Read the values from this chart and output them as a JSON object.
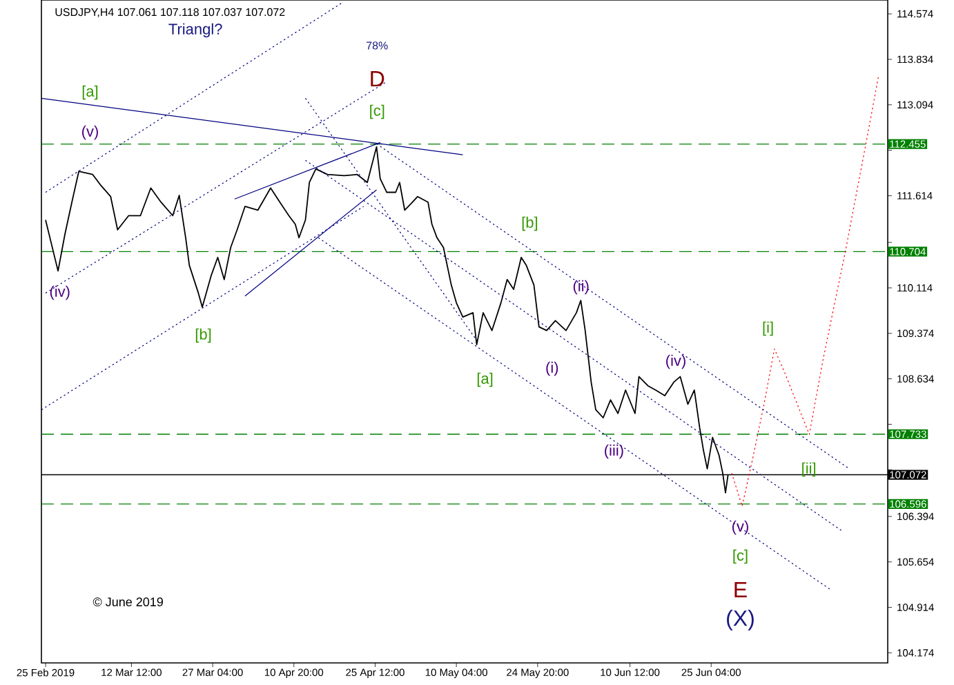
{
  "chart_data": {
    "type": "line",
    "title": "USDJPY,H4 107.061 107.118 107.037 107.072",
    "xlim": [
      "2019-02-24T06:00",
      "2019-07-27T01:00"
    ],
    "ylim": [
      104.01,
      114.8
    ],
    "xticks": [
      {
        "value": "2019-02-25T00:00",
        "label": "25 Feb 2019"
      },
      {
        "value": "2019-03-12T12:00",
        "label": "12 Mar 12:00"
      },
      {
        "value": "2019-03-27T04:00",
        "label": "27 Mar 04:00"
      },
      {
        "value": "2019-04-10T20:00",
        "label": "10 Apr 20:00"
      },
      {
        "value": "2019-04-25T12:00",
        "label": "25 Apr 12:00"
      },
      {
        "value": "2019-05-10T04:00",
        "label": "10 May 04:00"
      },
      {
        "value": "2019-05-24T20:00",
        "label": "24 May 20:00"
      },
      {
        "value": "2019-06-10T12:00",
        "label": "10 Jun 12:00"
      },
      {
        "value": "2019-06-25T04:00",
        "label": "25 Jun 04:00"
      }
    ],
    "yticks": [
      114.574,
      113.834,
      113.094,
      {
        "value": 112.354,
        "label": null
      },
      111.614,
      {
        "value": 110.854,
        "label": null
      },
      110.114,
      109.374,
      108.634,
      {
        "value": 107.894,
        "label": null
      },
      {
        "value": 107.154,
        "label": null
      },
      106.394,
      105.654,
      104.914,
      104.174
    ],
    "series": [
      {
        "color": "#000000",
        "line_style": "solid",
        "x": [
          "2019-02-25T00:00",
          "2019-02-27T06:00",
          "2019-02-28T12:00",
          "2019-03-01T18:00",
          "2019-03-03T00:00",
          "2019-03-05T12:00",
          "2019-03-07T00:00",
          "2019-03-08T18:00",
          "2019-03-10T00:00",
          "2019-03-12T00:00",
          "2019-03-14T03:00",
          "2019-03-16T00:00",
          "2019-03-17T20:00",
          "2019-03-19T23:00",
          "2019-03-21T03:00",
          "2019-03-22T07:00",
          "2019-03-22T23:00",
          "2019-03-24T14:00",
          "2019-03-25T07:00",
          "2019-03-26T22:00",
          "2019-03-28T02:00",
          "2019-03-29T06:00",
          "2019-03-30T10:00",
          "2019-03-31T14:00",
          "2019-04-02T00:00",
          "2019-04-04T08:00",
          "2019-04-06T15:00",
          "2019-04-08T07:00",
          "2019-04-09T22:00",
          "2019-04-11T02:00",
          "2019-04-11T18:00",
          "2019-04-12T22:00",
          "2019-04-13T15:00",
          "2019-04-14T19:00",
          "2019-04-16T21:00",
          "2019-04-19T22:00",
          "2019-04-22T06:00",
          "2019-04-24T02:00",
          "2019-04-25T18:00",
          "2019-04-26T10:00",
          "2019-04-27T14:00",
          "2019-04-29T05:00",
          "2019-04-29T22:00",
          "2019-04-30T20:00",
          "2019-05-02T06:00",
          "2019-05-03T04:00",
          "2019-05-05T01:00",
          "2019-05-05T18:00",
          "2019-05-06T16:00",
          "2019-05-07T20:00",
          "2019-05-09T06:00",
          "2019-05-10T04:00",
          "2019-05-11T08:00",
          "2019-05-13T04:00",
          "2019-05-13T20:00",
          "2019-05-15T00:00",
          "2019-05-16T14:00",
          "2019-05-18T05:00",
          "2019-05-19T08:00",
          "2019-05-20T12:00",
          "2019-05-21T21:00",
          "2019-05-22T19:00",
          "2019-05-24T04:00",
          "2019-05-25T02:00",
          "2019-05-26T11:00",
          "2019-05-28T01:00",
          "2019-05-29T23:00",
          "2019-05-31T20:00",
          "2019-06-01T15:00",
          "2019-06-02T10:00",
          "2019-06-03T12:00",
          "2019-06-04T08:00",
          "2019-06-05T16:00",
          "2019-06-07T00:00",
          "2019-06-08T08:00",
          "2019-06-09T17:00",
          "2019-06-11T10:00",
          "2019-06-12T03:00",
          "2019-06-13T18:00",
          "2019-06-15T04:00",
          "2019-06-16T19:00",
          "2019-06-18T10:00",
          "2019-06-19T14:00",
          "2019-06-20T23:00",
          "2019-06-22T03:00",
          "2019-06-23T02:00",
          "2019-06-23T19:00",
          "2019-06-24T11:00",
          "2019-06-25T10:00",
          "2019-06-26T14:00",
          "2019-06-27T06:00",
          "2019-06-27T18:00",
          "2019-06-28T05:00"
        ],
        "values": [
          111.22,
          110.39,
          110.99,
          111.51,
          112.01,
          111.96,
          111.78,
          111.6,
          111.06,
          111.29,
          111.29,
          111.74,
          111.51,
          111.29,
          111.62,
          110.93,
          110.48,
          110.03,
          109.8,
          110.32,
          110.61,
          110.25,
          110.77,
          111.06,
          111.44,
          111.38,
          111.74,
          111.51,
          111.29,
          111.15,
          110.93,
          111.22,
          111.83,
          112.05,
          111.96,
          111.94,
          111.96,
          111.83,
          112.41,
          111.89,
          111.67,
          111.67,
          111.83,
          111.38,
          111.51,
          111.6,
          111.51,
          111.15,
          110.93,
          110.77,
          110.16,
          109.87,
          109.64,
          109.71,
          109.19,
          109.71,
          109.42,
          109.87,
          110.25,
          110.09,
          110.61,
          110.48,
          110.16,
          109.48,
          109.42,
          109.58,
          109.42,
          109.71,
          109.91,
          109.42,
          108.58,
          108.13,
          108.0,
          108.29,
          108.07,
          108.45,
          108.07,
          108.67,
          108.52,
          108.45,
          108.36,
          108.58,
          108.67,
          108.22,
          108.45,
          107.84,
          107.46,
          107.17,
          107.68,
          107.39,
          107.1,
          106.78,
          107.07
        ]
      },
      {
        "color": "#ff0000",
        "line_style": "dotted",
        "x": [
          "2019-06-28T21:00",
          "2019-06-30T18:00",
          "2019-07-02T15:00",
          "2019-07-04T17:00",
          "2019-07-06T14:00",
          "2019-07-08T10:00",
          "2019-07-12T21:00",
          "2019-07-15T10:00",
          "2019-07-19T09:00",
          "2019-07-23T08:00",
          "2019-07-25T10:00"
        ],
        "values": [
          107.1,
          106.56,
          107.32,
          108.22,
          109.12,
          108.74,
          107.73,
          108.97,
          110.7,
          112.57,
          113.58
        ]
      },
      {
        "color": "#000080",
        "line_style": "solid",
        "x": [
          "2019-02-24T06:00",
          "2019-05-11T08:00"
        ],
        "values": [
          113.2,
          112.28
        ]
      },
      {
        "color": "#000080",
        "line_style": "solid",
        "x": [
          "2019-03-31T03:00",
          "2019-04-26T10:00"
        ],
        "values": [
          111.56,
          112.48
        ]
      },
      {
        "color": "#000080",
        "line_style": "solid",
        "x": [
          "2019-04-02T00:00",
          "2019-04-25T18:00"
        ],
        "values": [
          109.98,
          111.71
        ]
      },
      {
        "color": "#000080",
        "line_style": "dotted",
        "x": [
          "2019-02-25T00:00",
          "2019-04-19T11:00"
        ],
        "values": [
          111.67,
          114.75
        ]
      },
      {
        "color": "#000080",
        "line_style": "dotted",
        "x": [
          "2019-02-25T00:00",
          "2019-04-27T14:00"
        ],
        "values": [
          110.03,
          113.47
        ]
      },
      {
        "color": "#000080",
        "line_style": "dotted",
        "x": [
          "2019-02-24T06:00",
          "2019-04-23T10:00"
        ],
        "values": [
          108.13,
          111.44
        ]
      },
      {
        "color": "#000080",
        "line_style": "dotted",
        "x": [
          "2019-04-12T22:00",
          "2019-05-13T20:00"
        ],
        "values": [
          113.2,
          109.26
        ]
      },
      {
        "color": "#000080",
        "line_style": "dotted",
        "x": [
          "2019-04-25T18:00",
          "2019-07-20T02:00"
        ],
        "values": [
          112.46,
          107.17
        ]
      },
      {
        "color": "#000080",
        "line_style": "dotted",
        "x": [
          "2019-04-12T22:00",
          "2019-07-18T22:00"
        ],
        "values": [
          112.19,
          106.15
        ]
      },
      {
        "color": "#000080",
        "line_style": "dotted",
        "x": [
          "2019-04-15T06:00",
          "2019-07-16T14:00"
        ],
        "values": [
          110.93,
          105.21
        ]
      }
    ],
    "ref_lines": [
      {
        "axis": "y",
        "value": 112.455,
        "label": "112.455",
        "color": "#008000",
        "line_style": "dashed"
      },
      {
        "axis": "y",
        "value": 110.704,
        "label": "110.704",
        "color": "#008000",
        "line_style": "dashed"
      },
      {
        "axis": "y",
        "value": 107.733,
        "label": "107.733",
        "color": "#008000",
        "line_style": "dashed"
      },
      {
        "axis": "y",
        "value": 107.072,
        "label": "107.072",
        "color": "#000000",
        "line_style": "solid"
      },
      {
        "axis": "y",
        "value": 106.596,
        "label": "106.596",
        "color": "#008000",
        "line_style": "dashed"
      }
    ],
    "annotations": [
      "Triangl?",
      "78%",
      "D",
      "[c]",
      "[a]",
      "(v)",
      "(iv)",
      "[b]",
      "[b]",
      "(ii)",
      "[a]",
      "(i)",
      "(iv)",
      "(iii)",
      "[i]",
      "[ii]",
      "(v)",
      "[c]",
      "E",
      "(X)",
      "© June 2019"
    ]
  }
}
